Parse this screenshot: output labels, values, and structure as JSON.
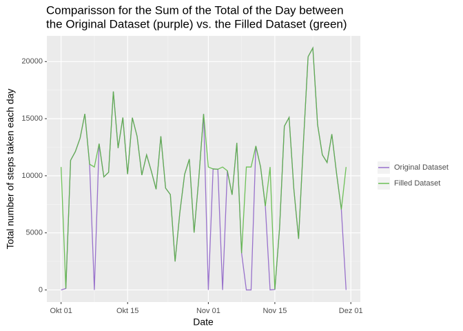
{
  "chart_data": {
    "type": "line",
    "title": [
      "Comparisson for the Sum of the Total of the Day between",
      "the Original Dataset (purple) vs. the Filled Dataset (green)"
    ],
    "x_label": "Date",
    "y_label": "Total number of steps taken each day",
    "x": [
      0,
      1,
      2,
      3,
      4,
      5,
      6,
      7,
      8,
      9,
      10,
      11,
      12,
      13,
      14,
      15,
      16,
      17,
      18,
      19,
      20,
      21,
      22,
      23,
      24,
      25,
      26,
      27,
      28,
      29,
      30,
      31,
      32,
      33,
      34,
      35,
      36,
      37,
      38,
      39,
      40,
      41,
      42,
      43,
      44,
      45,
      46,
      47,
      48,
      49,
      50,
      51,
      52,
      53,
      54,
      55,
      56,
      57,
      58,
      59,
      60
    ],
    "series": [
      {
        "name": "Original Dataset",
        "color": "#8a5cc6",
        "values": [
          0,
          126,
          11352,
          12116,
          13294,
          15420,
          11015,
          0,
          12811,
          9900,
          10304,
          17382,
          12426,
          15098,
          10139,
          15084,
          13452,
          10056,
          11829,
          10395,
          8821,
          13460,
          8918,
          8355,
          2492,
          6778,
          10119,
          11458,
          5018,
          9819,
          15414,
          0,
          10600,
          10571,
          0,
          10439,
          8334,
          12883,
          3219,
          0,
          0,
          12608,
          10765,
          7336,
          0,
          41,
          5441,
          14339,
          15110,
          8841,
          4472,
          12787,
          20427,
          21194,
          14478,
          11834,
          11162,
          13646,
          10183,
          7047,
          0
        ]
      },
      {
        "name": "Filled Dataset",
        "color": "#56b83c",
        "values": [
          10766.19,
          126,
          11352,
          12116,
          13294,
          15420,
          11015,
          10766.19,
          12811,
          9900,
          10304,
          17382,
          12426,
          15098,
          10139,
          15084,
          13452,
          10056,
          11829,
          10395,
          8821,
          13460,
          8918,
          8355,
          2492,
          6778,
          10119,
          11458,
          5018,
          9819,
          15414,
          10766.19,
          10600,
          10571,
          10766.19,
          10439,
          8334,
          12883,
          3219,
          10766.19,
          10766.19,
          12608,
          10765,
          7336,
          10766.19,
          41,
          5441,
          14339,
          15110,
          8841,
          4472,
          12787,
          20427,
          21194,
          14478,
          11834,
          11162,
          13646,
          10183,
          7047,
          10766.19
        ]
      }
    ],
    "xlim": [
      -3,
      63
    ],
    "xticks": [
      {
        "value": 0,
        "label": "Okt 01"
      },
      {
        "value": 14,
        "label": "Okt 15"
      },
      {
        "value": 31,
        "label": "Nov 01"
      },
      {
        "value": 45,
        "label": "Nov 15"
      },
      {
        "value": 61,
        "label": "Dez 01"
      }
    ],
    "ylim": [
      -1060,
      22254
    ],
    "yticks": [
      0,
      5000,
      10000,
      15000,
      20000
    ],
    "grid": true,
    "legend": "right"
  }
}
